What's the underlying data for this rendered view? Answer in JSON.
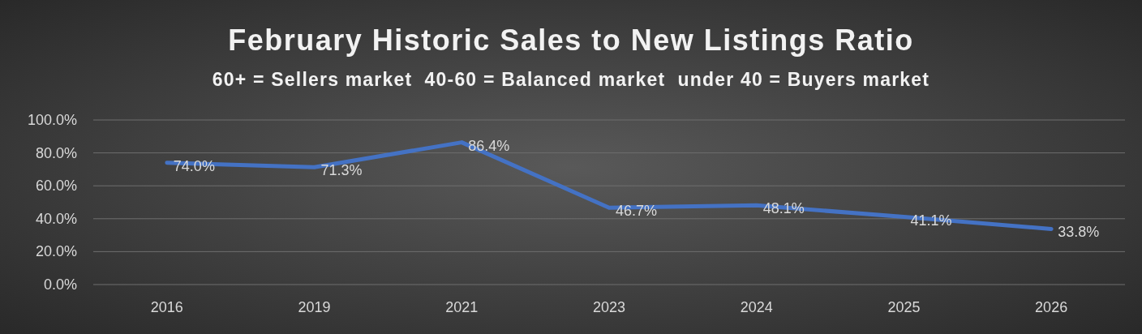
{
  "chart_data": {
    "type": "line",
    "title": "February Historic Sales to New Listings Ratio",
    "subtitle": "60+ = Sellers market  40-60 = Balanced market  under 40 = Buyers market",
    "categories": [
      "2016",
      "2019",
      "2021",
      "2023",
      "2024",
      "2025",
      "2026"
    ],
    "series": [
      {
        "color": "#4472c4",
        "values": [
          74.0,
          71.3,
          86.4,
          46.7,
          48.1,
          41.1,
          33.8
        ],
        "value_labels": [
          "74.0%",
          "71.3%",
          "86.4%",
          "46.7%",
          "48.1%",
          "41.1%",
          "33.8%"
        ]
      }
    ],
    "ylim": [
      0,
      100
    ],
    "yticks": [
      {
        "value": 0,
        "label": "0.0%"
      },
      {
        "value": 20,
        "label": "20.0%"
      },
      {
        "value": 40,
        "label": "40.0%"
      },
      {
        "value": 60,
        "label": "60.0%"
      },
      {
        "value": 80,
        "label": "80.0%"
      },
      {
        "value": 100,
        "label": "100.0%"
      }
    ],
    "grid": "y",
    "marker": "none",
    "line_style": "solid"
  }
}
